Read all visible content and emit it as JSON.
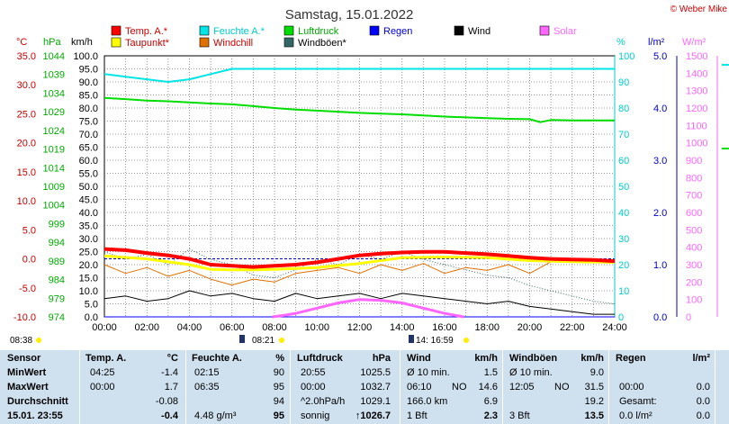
{
  "title": "Samstag, 15.01.2022",
  "credit": "© Weber Mike",
  "colors": {
    "temp": "#ff0000",
    "humidity": "#00e5e5",
    "pressure": "#00dd00",
    "rain": "#0000ff",
    "wind": "#000000",
    "solar": "#ff66ff",
    "dewpoint": "#ffff00",
    "windchill": "#e07000",
    "gust": "#336666",
    "stats_bg": "#cfe0ef"
  },
  "legend": {
    "temp": "Temp. A.*",
    "humidity": "Feuchte A.*",
    "pressure": "Luftdruck",
    "rain": "Regen",
    "wind": "Wind",
    "solar": "Solar",
    "dewpoint": "Taupunkt*",
    "windchill": "Windchill",
    "gust": "Windböen*"
  },
  "axis_units": {
    "temp": "°C",
    "pressure": "hPa",
    "wind": "km/h",
    "humidity": "%",
    "rain": "l/m²",
    "solar": "W/m²"
  },
  "axis_ticks": {
    "temp": [
      "35.0",
      "30.0",
      "25.0",
      "20.0",
      "15.0",
      "10.0",
      "5.0",
      "0.0",
      "-5.0",
      "-10.0"
    ],
    "pressure": [
      "1044",
      "1039",
      "1034",
      "1029",
      "1024",
      "1019",
      "1014",
      "1009",
      "1004",
      "999",
      "994",
      "989",
      "984",
      "979",
      "974"
    ],
    "wind": [
      "100.0",
      "95.0",
      "90.0",
      "85.0",
      "80.0",
      "75.0",
      "70.0",
      "65.0",
      "60.0",
      "55.0",
      "50.0",
      "45.0",
      "40.0",
      "35.0",
      "30.0",
      "25.0",
      "20.0",
      "15.0",
      "10.0",
      "5.0",
      "0.0"
    ],
    "humidity": [
      "100",
      "90",
      "80",
      "70",
      "60",
      "50",
      "40",
      "30",
      "20",
      "10",
      "0"
    ],
    "rain": [
      "5.0",
      "4.0",
      "3.0",
      "2.0",
      "1.0",
      "0.0"
    ],
    "solar": [
      "1500",
      "1400",
      "1300",
      "1200",
      "1100",
      "1000",
      "900",
      "800",
      "700",
      "600",
      "500",
      "400",
      "300",
      "200",
      "100",
      "0"
    ]
  },
  "x_ticks": [
    "00:00",
    "02:00",
    "04:00",
    "06:00",
    "08:00",
    "10:00",
    "12:00",
    "14:00",
    "16:00",
    "18:00",
    "20:00",
    "22:00",
    "24:00"
  ],
  "sun_marks": {
    "sunrise": "08:38",
    "transit": "08:21",
    "sunset_mark": "14: 16:59"
  },
  "chart_data": {
    "type": "line",
    "x_unit": "hours",
    "xlim": [
      0,
      24
    ],
    "series": [
      {
        "name": "Temp. A.*",
        "unit": "°C",
        "x": [
          0,
          1,
          2,
          3,
          4,
          5,
          6,
          7,
          8,
          9,
          10,
          11,
          12,
          13,
          14,
          15,
          16,
          17,
          18,
          19,
          20,
          21,
          22,
          23,
          24
        ],
        "values": [
          1.7,
          1.5,
          1.0,
          0.6,
          0.0,
          -1.0,
          -1.2,
          -1.4,
          -1.2,
          -1.0,
          -0.6,
          0.0,
          0.6,
          0.9,
          1.1,
          1.2,
          1.2,
          1.0,
          0.8,
          0.5,
          0.2,
          0.0,
          -0.1,
          -0.2,
          -0.4
        ]
      },
      {
        "name": "Feuchte A.*",
        "unit": "%",
        "x": [
          0,
          1,
          2,
          3,
          4,
          5,
          6,
          7,
          8,
          9,
          10,
          11,
          12,
          13,
          14,
          15,
          16,
          17,
          18,
          19,
          20,
          21,
          22,
          23,
          24
        ],
        "values": [
          93,
          92,
          91,
          90,
          91,
          93,
          95,
          95,
          95,
          95,
          95,
          95,
          95,
          95,
          95,
          95,
          95,
          95,
          95,
          95,
          95,
          95,
          95,
          95,
          95
        ]
      },
      {
        "name": "Luftdruck",
        "unit": "hPa",
        "x": [
          0,
          1,
          2,
          3,
          4,
          5,
          6,
          7,
          8,
          9,
          10,
          11,
          12,
          13,
          14,
          15,
          16,
          17,
          18,
          19,
          20,
          20.5,
          21,
          22,
          23,
          24
        ],
        "values": [
          1032.7,
          1032.4,
          1032.0,
          1031.8,
          1031.5,
          1031.2,
          1031.0,
          1030.5,
          1030.0,
          1029.6,
          1029.3,
          1029.0,
          1028.7,
          1028.5,
          1028.3,
          1028.0,
          1027.7,
          1027.5,
          1027.3,
          1027.1,
          1027.0,
          1026.2,
          1026.8,
          1026.7,
          1026.7,
          1026.7
        ]
      },
      {
        "name": "Taupunkt*",
        "unit": "°C",
        "x": [
          0,
          2,
          4,
          5,
          6,
          7,
          8,
          10,
          12,
          14,
          16,
          18,
          20,
          22,
          24
        ],
        "values": [
          0.5,
          0.0,
          -1.0,
          -1.8,
          -1.9,
          -1.9,
          -1.8,
          -1.5,
          -0.8,
          0.2,
          0.3,
          0.2,
          -0.3,
          -0.5,
          -0.6
        ]
      },
      {
        "name": "Windchill",
        "unit": "°C",
        "x": [
          0,
          1,
          2,
          3,
          4,
          5,
          6,
          7,
          8,
          9,
          10,
          11,
          12,
          13,
          14,
          15,
          16,
          17,
          18,
          19,
          20,
          21,
          22,
          23,
          24
        ],
        "values": [
          -1.0,
          -2.5,
          -1.5,
          -3.0,
          -2.0,
          -3.5,
          -4.5,
          -3.5,
          -4.0,
          -2.5,
          -2.0,
          -1.5,
          -2.5,
          -1.0,
          -2.0,
          -0.8,
          -2.5,
          -1.5,
          -2.0,
          -1.0,
          -2.5,
          -0.5,
          -0.5,
          -0.5,
          -0.5
        ]
      },
      {
        "name": "Wind",
        "unit": "km/h",
        "x": [
          0,
          1,
          2,
          3,
          4,
          5,
          6,
          7,
          8,
          9,
          10,
          11,
          12,
          13,
          14,
          15,
          16,
          17,
          18,
          19,
          20,
          21,
          22,
          23,
          24
        ],
        "values": [
          7,
          8,
          6,
          7,
          10,
          8,
          9,
          7,
          6,
          9,
          7,
          8,
          9,
          7,
          9,
          8,
          7,
          6,
          5,
          6,
          4,
          3,
          2,
          1,
          1
        ]
      },
      {
        "name": "Windböen*",
        "unit": "km/h",
        "x": [
          0,
          1,
          2,
          3,
          4,
          5,
          6,
          7,
          8,
          9,
          10,
          11,
          12,
          13,
          14,
          15,
          16,
          17,
          18,
          19,
          20,
          21,
          22,
          23,
          24
        ],
        "values": [
          25,
          22,
          24,
          20,
          26,
          22,
          20,
          16,
          15,
          18,
          22,
          20,
          24,
          22,
          25,
          22,
          20,
          18,
          16,
          15,
          12,
          10,
          8,
          6,
          5
        ]
      },
      {
        "name": "Solar",
        "unit": "W/m²",
        "x": [
          7.9,
          8.5,
          9,
          10,
          11,
          12,
          13,
          14,
          15,
          16,
          16.9
        ],
        "values": [
          0,
          10,
          20,
          50,
          80,
          100,
          95,
          80,
          50,
          20,
          0
        ]
      },
      {
        "name": "Regen",
        "unit": "l/m²",
        "x": [
          0,
          24
        ],
        "values": [
          0.0,
          0.0
        ]
      }
    ]
  },
  "stats": {
    "row_labels": [
      "Sensor",
      "MinWert",
      "MaxWert",
      "Durchschnitt",
      "15.01. 23:55"
    ],
    "temp": {
      "h1": "Temp. A.",
      "h2": "°C",
      "rows": [
        [
          "04:25",
          "-1.4"
        ],
        [
          "00:00",
          "1.7"
        ],
        [
          "",
          "-0.08"
        ],
        [
          "",
          "-0.4"
        ]
      ]
    },
    "hum": {
      "h1": "Feuchte A.",
      "h2": "%",
      "rows": [
        [
          "02:15",
          "90"
        ],
        [
          "06:35",
          "95"
        ],
        [
          "",
          "94"
        ],
        [
          "4.48 g/m³",
          "95"
        ]
      ]
    },
    "press": {
      "h1": "Luftdruck",
      "h2": "hPa",
      "rows": [
        [
          "20:55",
          "1025.5"
        ],
        [
          "00:00",
          "1032.7"
        ],
        [
          "^2.0hPa/h",
          "1029.1"
        ],
        [
          "sonnig",
          "↑1026.7"
        ]
      ]
    },
    "wind": {
      "h1": "Wind",
      "h2": "km/h",
      "rows": [
        [
          "Ø 10 min.",
          "",
          "1.5"
        ],
        [
          "06:10",
          "NO",
          "14.6"
        ],
        [
          "166.0 km",
          "",
          "6.9"
        ],
        [
          "1 Bft",
          "",
          "2.3"
        ]
      ]
    },
    "gust": {
      "h1": "Windböen",
      "h2": "km/h",
      "rows": [
        [
          "Ø 10 min.",
          "",
          "9.0"
        ],
        [
          "12:05",
          "NO",
          "31.5"
        ],
        [
          "",
          "",
          "19.2"
        ],
        [
          "3 Bft",
          "",
          "13.5"
        ]
      ]
    },
    "rain": {
      "h1": "Regen",
      "h2": "l/m²",
      "rows": [
        [
          "",
          ""
        ],
        [
          "00:00",
          "0.0"
        ],
        [
          "Gesamt:",
          "0.0"
        ],
        [
          "0.0 l/m²",
          "0.0"
        ]
      ]
    }
  }
}
